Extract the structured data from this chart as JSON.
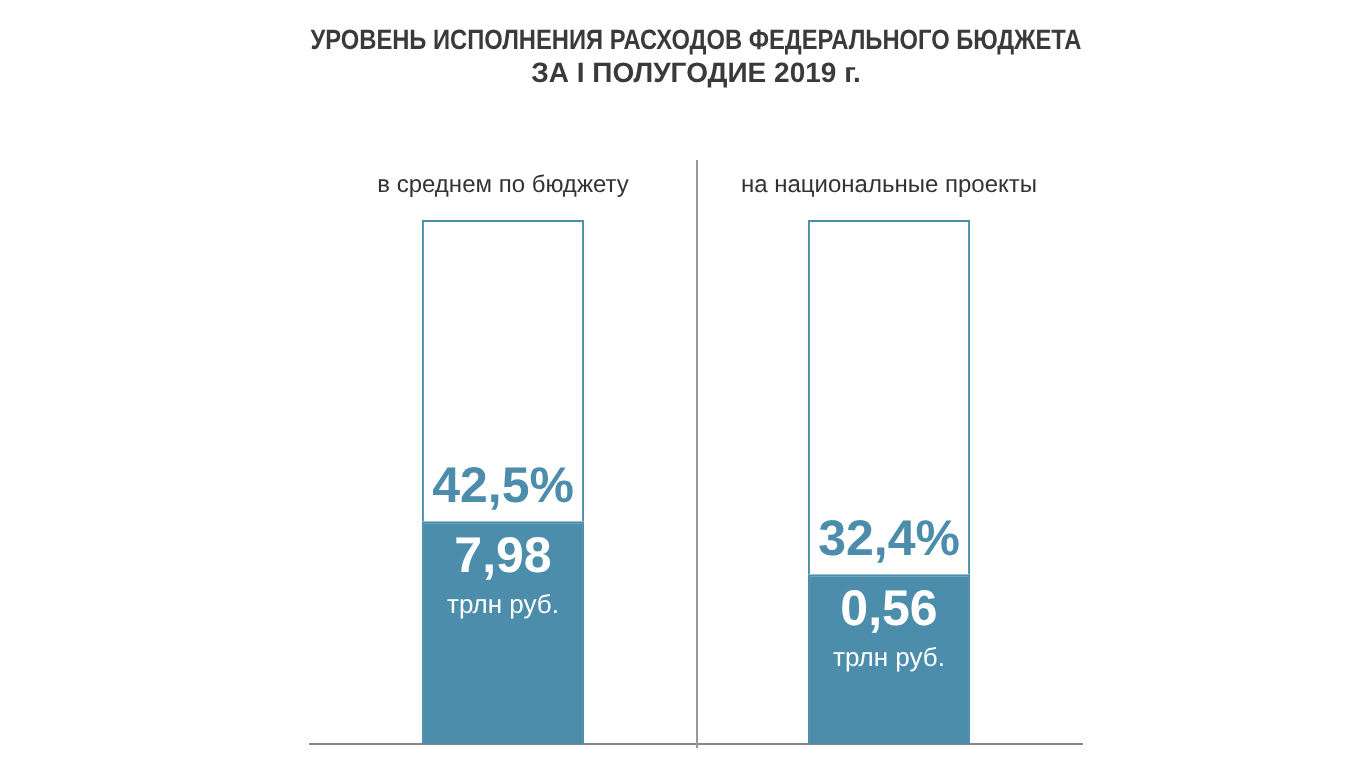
{
  "chart_data": {
    "type": "bar",
    "title": "УРОВЕНЬ ИСПОЛНЕНИЯ РАСХОДОВ ФЕДЕРАЛЬНОГО БЮДЖЕТА\nЗА I ПОЛУГОДИЕ 2019 г.",
    "categories": [
      "в среднем по бюджету",
      "на национальные проекты"
    ],
    "stacked": true,
    "ylim": [
      0,
      100
    ],
    "tick_labels": "x",
    "legend": false,
    "grid": false,
    "series": [
      {
        "color": "#4b8dab",
        "values": [
          42.5,
          32.4
        ],
        "value_labels": [
          "42,5%",
          "32,4%"
        ]
      },
      {
        "color": "#ffffff",
        "values": [
          57.5,
          67.6
        ]
      }
    ],
    "annotations": [
      {
        "text": "7,98 трлн руб.",
        "x": "в среднем по бюджету",
        "y": 42.5
      },
      {
        "text": "0,56 трлн руб.",
        "x": "на национальные проекты",
        "y": 32.4
      }
    ]
  }
}
